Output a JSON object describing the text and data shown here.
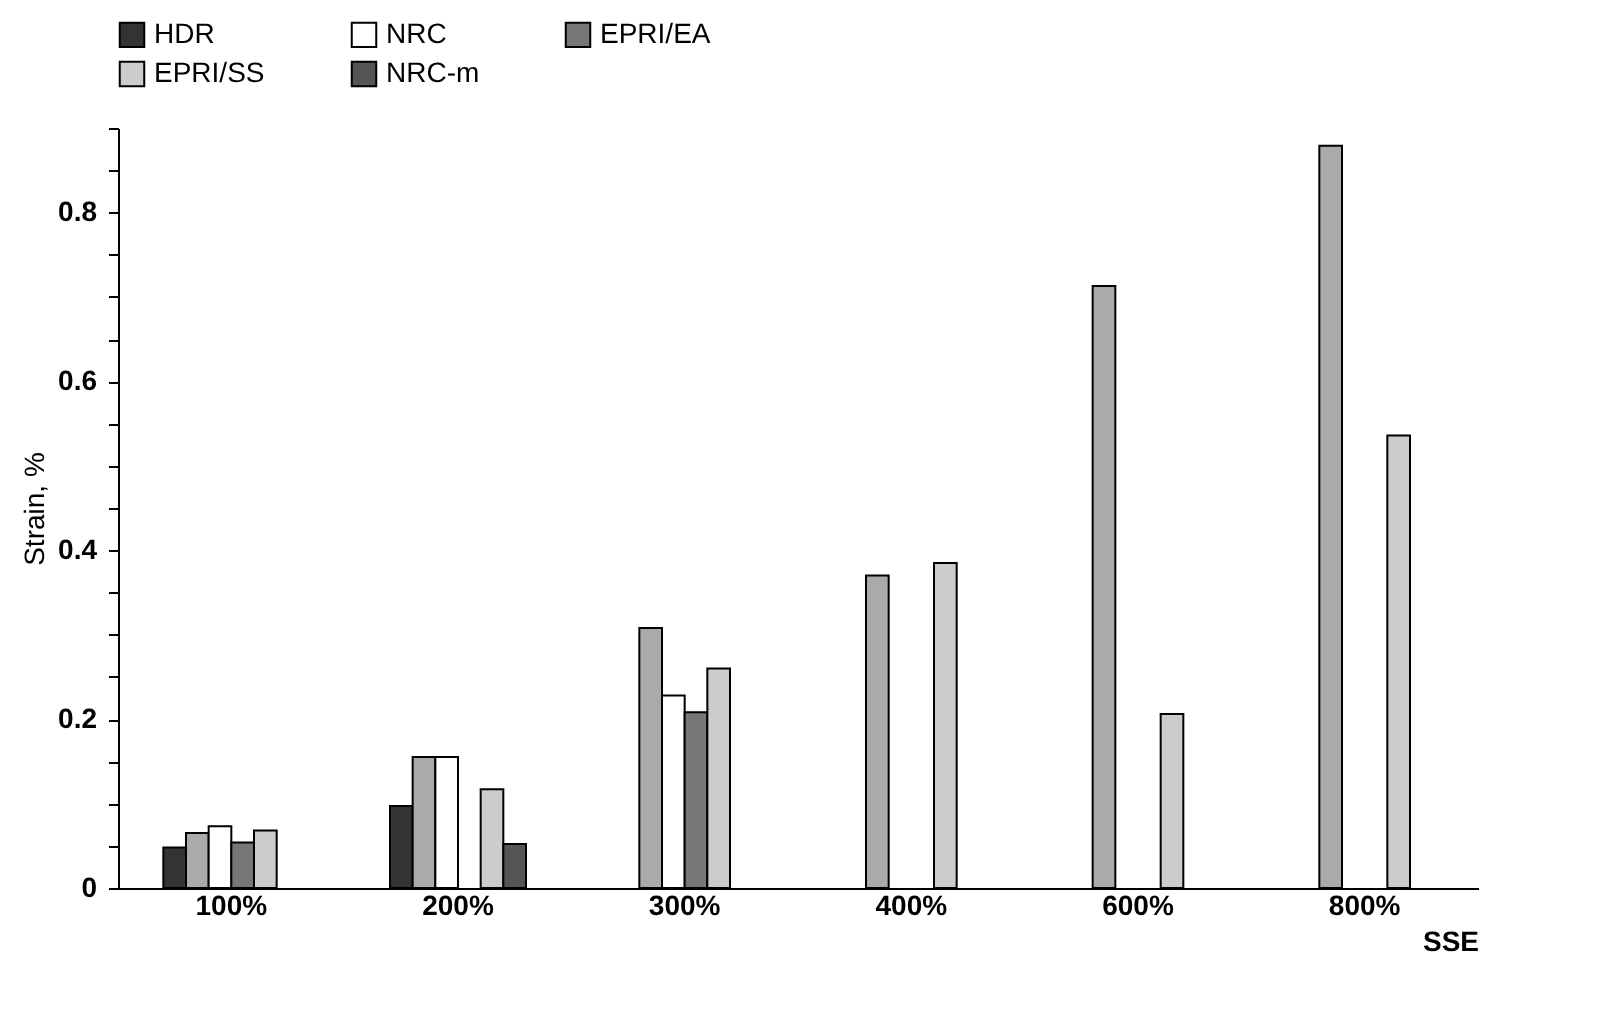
{
  "chart_data": {
    "type": "bar",
    "xlabel": "SSE",
    "ylabel": "Strain, %",
    "categories": [
      "100%",
      "200%",
      "300%",
      "400%",
      "600%",
      "800%"
    ],
    "series": [
      {
        "name": "HDR",
        "color": "#333333",
        "values": [
          0.048,
          0.097,
          null,
          null,
          null,
          null
        ]
      },
      {
        "color": "#aaaaaa",
        "values": [
          0.065,
          0.155,
          0.308,
          0.37,
          0.713,
          0.879
        ]
      },
      {
        "name": "NRC",
        "color": "#ffffff",
        "values": [
          0.073,
          0.155,
          0.228,
          null,
          null,
          null
        ]
      },
      {
        "name": "EPRI/EA",
        "color": "#777777",
        "values": [
          0.054,
          null,
          0.208,
          null,
          null,
          null
        ]
      },
      {
        "name": "EPRI/SS",
        "color": "#cccccc",
        "values": [
          0.068,
          0.117,
          0.26,
          0.385,
          0.206,
          0.536
        ]
      },
      {
        "name": "NRC-m",
        "color": "#555555",
        "values": [
          null,
          0.052,
          null,
          null,
          null,
          null
        ]
      }
    ],
    "ylim": [
      0,
      0.9
    ],
    "yticks": [
      0,
      {
        "value": 0.05,
        "label": null
      },
      {
        "value": 0.1,
        "label": null
      },
      {
        "value": 0.15,
        "label": null
      },
      0.2,
      {
        "value": 0.25,
        "label": null
      },
      {
        "value": 0.3,
        "label": null
      },
      {
        "value": 0.35,
        "label": null
      },
      0.4,
      {
        "value": 0.45,
        "label": null
      },
      {
        "value": 0.5,
        "label": null
      },
      {
        "value": 0.55,
        "label": null
      },
      0.6,
      {
        "value": 0.65,
        "label": null
      },
      {
        "value": 0.7,
        "label": null
      },
      {
        "value": 0.75,
        "label": null
      },
      0.8,
      {
        "value": 0.85,
        "label": null
      },
      {
        "value": 0.9,
        "label": null
      }
    ],
    "grid": false,
    "legend": "top"
  }
}
